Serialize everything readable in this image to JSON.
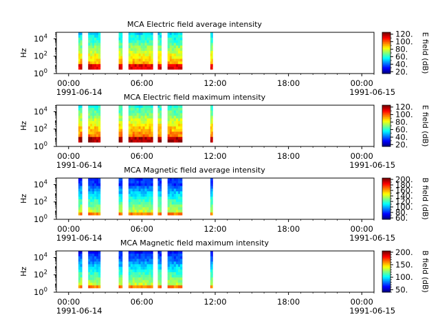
{
  "chart_data": [
    {
      "type": "heatmap",
      "title": "MCA  Electric field average intensity",
      "ylabel": "Hz",
      "y_scale": "log",
      "y_ticks": [
        "10",
        "10",
        "10"
      ],
      "y_tick_exps": [
        "0",
        "2",
        "4"
      ],
      "y_tick_values": [
        1,
        100,
        10000
      ],
      "ylim": [
        1,
        56234
      ],
      "x_tick_labels": [
        "00:00",
        "06:00",
        "12:00",
        "18:00",
        "00:00"
      ],
      "x_tick_hours": [
        0,
        6,
        12,
        18,
        24
      ],
      "x_dates": [
        "1991-06-14",
        "1991-06-15"
      ],
      "xlim_hours": [
        -1,
        25
      ],
      "colorbar": {
        "label": "E field (dB)",
        "min": 15,
        "max": 125,
        "ticks": [
          "20.",
          "40.",
          "60.",
          "80.",
          "100.",
          "120."
        ],
        "tick_values": [
          20,
          40,
          60,
          80,
          100,
          120
        ],
        "minor_step": 10
      },
      "data_intervals_hours": [
        [
          0.8,
          1.1
        ],
        [
          1.6,
          2.6
        ],
        [
          4.1,
          4.4
        ],
        [
          4.9,
          6.9
        ],
        [
          7.3,
          7.6
        ],
        [
          8.1,
          9.3
        ],
        [
          11.6,
          11.8
        ]
      ],
      "intensity_profile": "e_avg",
      "freq_floor": 3
    },
    {
      "type": "heatmap",
      "title": "MCA  Electric field maximum intensity",
      "ylabel": "Hz",
      "y_scale": "log",
      "y_ticks": [
        "10",
        "10",
        "10"
      ],
      "y_tick_exps": [
        "0",
        "2",
        "4"
      ],
      "y_tick_values": [
        1,
        100,
        10000
      ],
      "ylim": [
        1,
        56234
      ],
      "x_tick_labels": [
        "00:00",
        "06:00",
        "12:00",
        "18:00",
        "00:00"
      ],
      "x_tick_hours": [
        0,
        6,
        12,
        18,
        24
      ],
      "x_dates": [
        "1991-06-14",
        "1991-06-15"
      ],
      "xlim_hours": [
        -1,
        25
      ],
      "colorbar": {
        "label": "E field (dB)",
        "min": 15,
        "max": 125,
        "ticks": [
          "20.",
          "40.",
          "60.",
          "80.",
          "100.",
          "120."
        ],
        "tick_values": [
          20,
          40,
          60,
          80,
          100,
          120
        ],
        "minor_step": 10
      },
      "data_intervals_hours": [
        [
          0.8,
          1.1
        ],
        [
          1.6,
          2.6
        ],
        [
          4.1,
          4.4
        ],
        [
          4.9,
          6.9
        ],
        [
          7.3,
          7.6
        ],
        [
          8.1,
          9.3
        ],
        [
          11.6,
          11.8
        ]
      ],
      "intensity_profile": "e_max",
      "freq_floor": 3
    },
    {
      "type": "heatmap",
      "title": "MCA  Magnetic field average intensity",
      "ylabel": "Hz",
      "y_scale": "log",
      "y_ticks": [
        "10",
        "10",
        "10"
      ],
      "y_tick_exps": [
        "0",
        "2",
        "4"
      ],
      "y_tick_values": [
        1,
        100,
        10000
      ],
      "ylim": [
        1,
        56234
      ],
      "x_tick_labels": [
        "00:00",
        "06:00",
        "12:00",
        "18:00",
        "00:00"
      ],
      "x_tick_hours": [
        0,
        6,
        12,
        18,
        24
      ],
      "x_dates": [
        "1991-06-14",
        "1991-06-15"
      ],
      "xlim_hours": [
        -1,
        25
      ],
      "colorbar": {
        "label": "B field (dB)",
        "min": 55,
        "max": 205,
        "ticks": [
          "60.",
          "80.",
          "100.",
          "120.",
          "140.",
          "160.",
          "180.",
          "200."
        ],
        "tick_values": [
          60,
          80,
          100,
          120,
          140,
          160,
          180,
          200
        ],
        "minor_step": 10
      },
      "data_intervals_hours": [
        [
          0.8,
          1.1
        ],
        [
          1.6,
          2.6
        ],
        [
          4.1,
          4.4
        ],
        [
          4.9,
          6.9
        ],
        [
          7.3,
          7.6
        ],
        [
          8.1,
          9.3
        ],
        [
          11.6,
          11.8
        ]
      ],
      "intensity_profile": "b_avg",
      "freq_floor": 3
    },
    {
      "type": "heatmap",
      "title": "MCA  Magnetic field maximum intensity",
      "ylabel": "Hz",
      "y_scale": "log",
      "y_ticks": [
        "10",
        "10",
        "10"
      ],
      "y_tick_exps": [
        "0",
        "2",
        "4"
      ],
      "y_tick_values": [
        1,
        100,
        10000
      ],
      "ylim": [
        1,
        56234
      ],
      "x_tick_labels": [
        "00:00",
        "06:00",
        "12:00",
        "18:00",
        "00:00"
      ],
      "x_tick_hours": [
        0,
        6,
        12,
        18,
        24
      ],
      "x_dates": [
        "1991-06-14",
        "1991-06-15"
      ],
      "xlim_hours": [
        -1,
        25
      ],
      "colorbar": {
        "label": "B field (dB)",
        "min": 40,
        "max": 205,
        "ticks": [
          "50.",
          "100.",
          "150.",
          "200."
        ],
        "tick_values": [
          50,
          100,
          150,
          200
        ],
        "minor_step": 10
      },
      "data_intervals_hours": [
        [
          0.8,
          1.1
        ],
        [
          1.6,
          2.6
        ],
        [
          4.1,
          4.4
        ],
        [
          4.9,
          6.9
        ],
        [
          7.3,
          7.6
        ],
        [
          8.1,
          9.3
        ],
        [
          11.6,
          11.8
        ]
      ],
      "intensity_profile": "b_max",
      "freq_floor": 3
    }
  ]
}
